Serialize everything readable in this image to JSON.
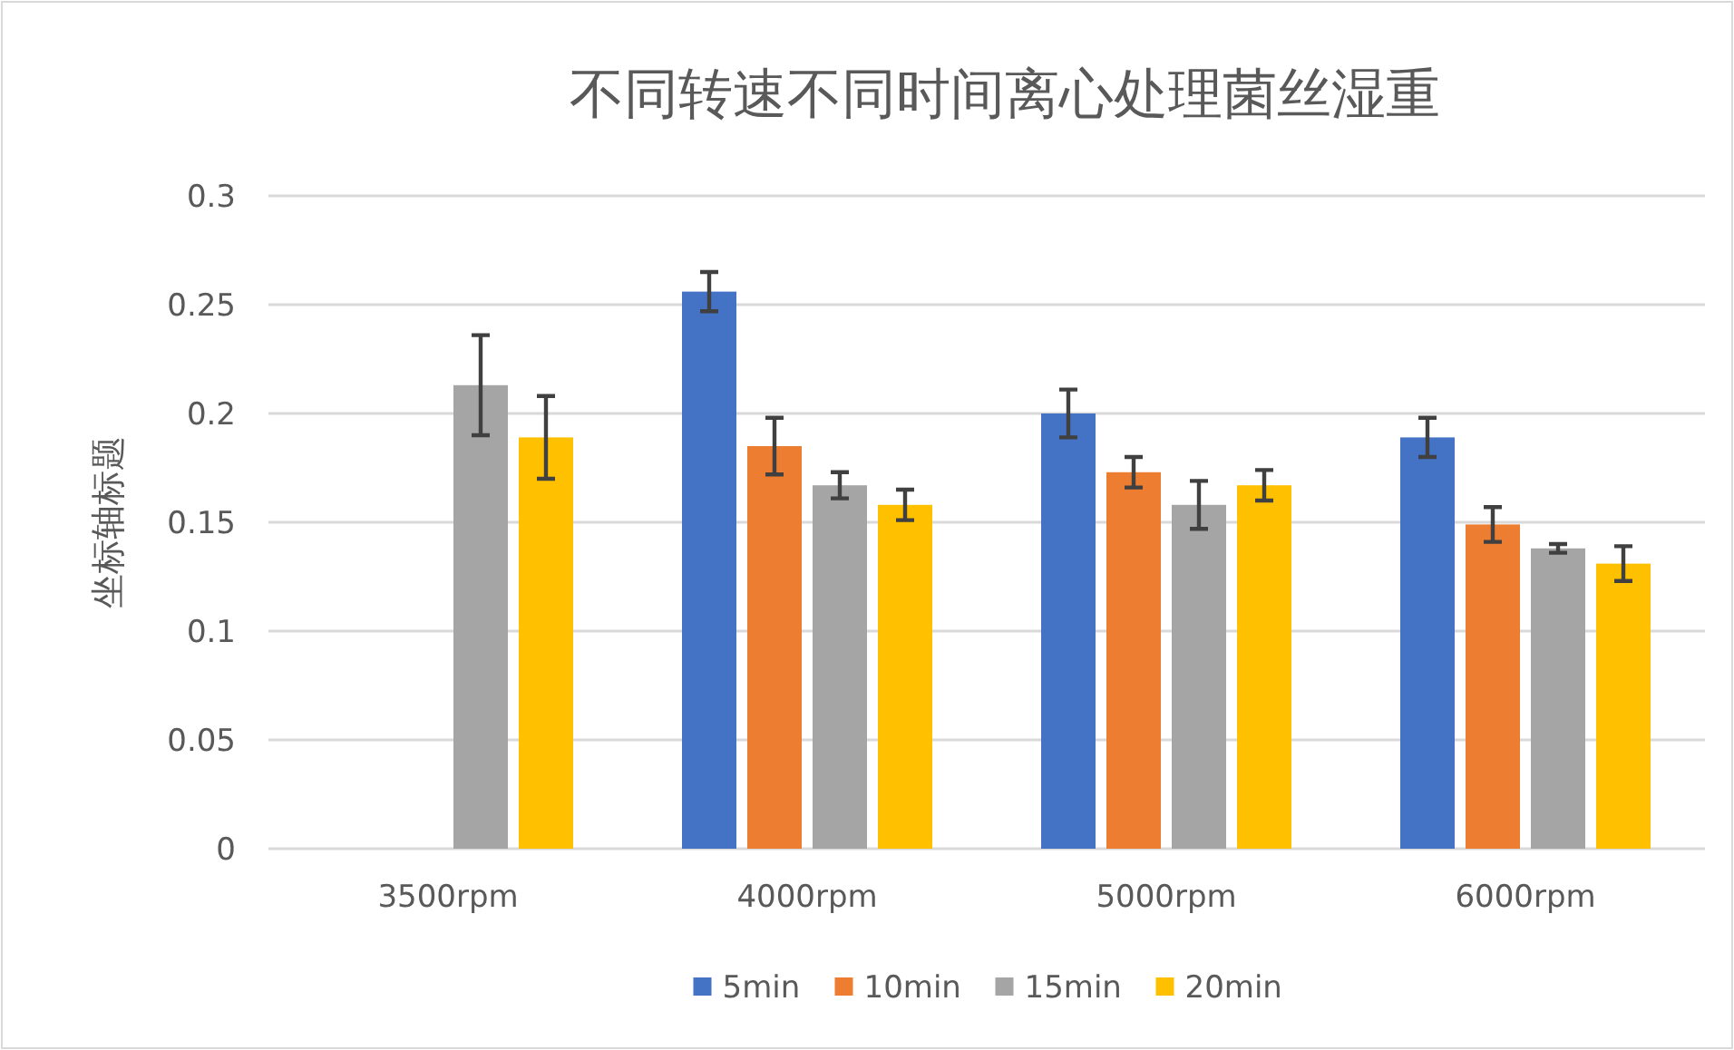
{
  "chart_data": {
    "type": "bar",
    "title": "不同转速不同时间离心处理菌丝湿重",
    "ylabel": "坐标轴标题",
    "categories": [
      "3500rpm",
      "4000rpm",
      "5000rpm",
      "6000rpm"
    ],
    "series": [
      {
        "name": "5min",
        "color": "#4472c4",
        "values": [
          null,
          0.256,
          0.2,
          0.189
        ],
        "errors": [
          null,
          0.009,
          0.011,
          0.009
        ]
      },
      {
        "name": "10min",
        "color": "#ed7d31",
        "values": [
          null,
          0.185,
          0.173,
          0.149
        ],
        "errors": [
          null,
          0.013,
          0.007,
          0.008
        ]
      },
      {
        "name": "15min",
        "color": "#a5a5a5",
        "values": [
          0.213,
          0.167,
          0.158,
          0.138
        ],
        "errors": [
          0.023,
          0.006,
          0.011,
          0.002
        ]
      },
      {
        "name": "20min",
        "color": "#ffc000",
        "values": [
          0.189,
          0.158,
          0.167,
          0.131
        ],
        "errors": [
          0.019,
          0.007,
          0.007,
          0.008
        ]
      }
    ],
    "ylim": [
      0,
      0.3
    ],
    "yticks": [
      0,
      0.05,
      0.1,
      0.15,
      0.2,
      0.25,
      0.3
    ],
    "grid": "y",
    "legend": "bottom"
  }
}
